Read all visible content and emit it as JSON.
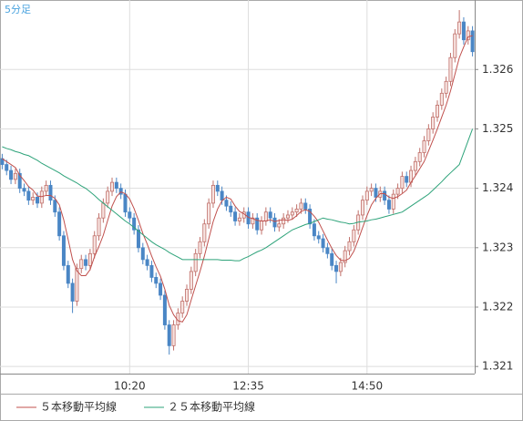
{
  "chart_data": {
    "type": "candlestick",
    "label": "5分足",
    "categories": [
      null,
      null,
      null,
      null,
      null,
      null,
      null,
      null,
      null,
      null,
      null,
      null,
      null,
      null,
      null,
      null,
      null,
      null,
      null,
      null,
      null,
      null,
      null,
      null,
      null,
      null,
      null,
      null,
      null,
      "10:20",
      null,
      null,
      null,
      null,
      null,
      null,
      null,
      null,
      null,
      null,
      null,
      null,
      null,
      null,
      null,
      null,
      null,
      null,
      null,
      null,
      null,
      null,
      null,
      null,
      null,
      null,
      "12:35",
      null,
      null,
      null,
      null,
      null,
      null,
      null,
      null,
      null,
      null,
      null,
      null,
      null,
      null,
      null,
      null,
      null,
      null,
      null,
      null,
      null,
      null,
      null,
      null,
      null,
      null,
      "14:50",
      null,
      null,
      null,
      null,
      null,
      null,
      null,
      null,
      null,
      null,
      null,
      null,
      null,
      null,
      null,
      null,
      null,
      null,
      null,
      null,
      null,
      null,
      null,
      null
    ],
    "open": [
      1.3245,
      1.3244,
      1.3243,
      1.32415,
      1.32425,
      1.324,
      1.32395,
      1.3238,
      1.32385,
      1.32375,
      1.32395,
      1.32405,
      1.3238,
      1.3236,
      1.3232,
      1.3227,
      1.3224,
      1.3221,
      1.32265,
      1.3228,
      1.3227,
      1.3229,
      1.3232,
      1.3235,
      1.32375,
      1.32395,
      1.3241,
      1.324,
      1.3239,
      1.3236,
      1.3235,
      1.3233,
      1.323,
      1.3228,
      1.3227,
      1.3225,
      1.3224,
      1.3222,
      1.3217,
      1.32135,
      1.3217,
      1.3219,
      1.3221,
      1.3223,
      1.3226,
      1.3229,
      1.3231,
      1.3234,
      1.32375,
      1.32405,
      1.32395,
      1.3238,
      1.3237,
      1.3236,
      1.32345,
      1.3235,
      1.3236,
      1.3234,
      1.3235,
      1.3233,
      1.32345,
      1.3236,
      1.3235,
      1.32335,
      1.3234,
      1.3235,
      1.32355,
      1.3236,
      1.32365,
      1.32375,
      1.32365,
      1.3234,
      1.3232,
      1.32315,
      1.323,
      1.3229,
      1.3227,
      1.3226,
      1.32275,
      1.32295,
      1.3231,
      1.3233,
      1.32355,
      1.3238,
      1.32395,
      1.324,
      1.32385,
      1.32395,
      1.3238,
      1.32365,
      1.3239,
      1.324,
      1.3242,
      1.3241,
      1.3243,
      1.32445,
      1.3246,
      1.3248,
      1.325,
      1.3252,
      1.3254,
      1.3256,
      1.3258,
      1.3262,
      1.3266,
      1.3268,
      1.3265,
      1.32665
    ],
    "high": [
      1.32458,
      1.32448,
      1.32438,
      1.32433,
      1.32433,
      1.32408,
      1.32403,
      1.32393,
      1.32393,
      1.32403,
      1.32413,
      1.32413,
      1.32388,
      1.32368,
      1.32328,
      1.32278,
      1.32248,
      1.32273,
      1.32288,
      1.32288,
      1.32298,
      1.32328,
      1.32358,
      1.32383,
      1.32403,
      1.32418,
      1.32418,
      1.32408,
      1.32398,
      1.32368,
      1.32358,
      1.32338,
      1.32308,
      1.32288,
      1.32278,
      1.32258,
      1.32248,
      1.32228,
      1.32178,
      1.32178,
      1.32198,
      1.32218,
      1.32238,
      1.32268,
      1.32298,
      1.32318,
      1.32348,
      1.32383,
      1.32413,
      1.32413,
      1.32403,
      1.32388,
      1.32378,
      1.32368,
      1.32358,
      1.32368,
      1.32368,
      1.32358,
      1.32358,
      1.32353,
      1.32368,
      1.32368,
      1.32358,
      1.32348,
      1.32358,
      1.32363,
      1.32368,
      1.32373,
      1.32383,
      1.32383,
      1.32373,
      1.32348,
      1.32328,
      1.32323,
      1.32308,
      1.32298,
      1.32278,
      1.32283,
      1.32303,
      1.32318,
      1.32338,
      1.32363,
      1.32388,
      1.32403,
      1.32408,
      1.32408,
      1.32403,
      1.32403,
      1.32388,
      1.32398,
      1.32408,
      1.32428,
      1.32428,
      1.32438,
      1.32453,
      1.32468,
      1.32488,
      1.32508,
      1.32528,
      1.32548,
      1.32568,
      1.32588,
      1.32628,
      1.32668,
      1.327,
      1.32688,
      1.32673,
      1.32673
    ],
    "low": [
      1.32432,
      1.32422,
      1.32407,
      1.32407,
      1.32392,
      1.32387,
      1.32372,
      1.32372,
      1.32367,
      1.32367,
      1.32387,
      1.32372,
      1.32352,
      1.32312,
      1.32262,
      1.32232,
      1.3219,
      1.32202,
      1.32257,
      1.32262,
      1.32262,
      1.32282,
      1.32312,
      1.32342,
      1.32367,
      1.32387,
      1.32392,
      1.32382,
      1.32352,
      1.32342,
      1.32322,
      1.32292,
      1.32272,
      1.32262,
      1.32242,
      1.32232,
      1.32212,
      1.32162,
      1.3212,
      1.32127,
      1.32162,
      1.32182,
      1.32202,
      1.32222,
      1.32252,
      1.32282,
      1.32302,
      1.32332,
      1.32367,
      1.32387,
      1.32372,
      1.32362,
      1.32352,
      1.32337,
      1.32337,
      1.32342,
      1.32332,
      1.32332,
      1.32322,
      1.32322,
      1.32337,
      1.32342,
      1.32327,
      1.32327,
      1.32332,
      1.32342,
      1.32347,
      1.32352,
      1.32357,
      1.32357,
      1.32332,
      1.32312,
      1.32307,
      1.32292,
      1.32282,
      1.32262,
      1.3224,
      1.32252,
      1.32267,
      1.32287,
      1.32302,
      1.32322,
      1.32347,
      1.32372,
      1.32387,
      1.32377,
      1.32377,
      1.32372,
      1.32357,
      1.32357,
      1.32382,
      1.32392,
      1.32402,
      1.32402,
      1.32422,
      1.32437,
      1.32452,
      1.32472,
      1.32492,
      1.32512,
      1.32532,
      1.32552,
      1.32572,
      1.32612,
      1.32652,
      1.32642,
      1.32642,
      1.32622
    ],
    "close": [
      1.3244,
      1.3243,
      1.32415,
      1.32425,
      1.324,
      1.32395,
      1.3238,
      1.32385,
      1.32375,
      1.32395,
      1.32405,
      1.3238,
      1.3236,
      1.3232,
      1.3227,
      1.3224,
      1.3221,
      1.32265,
      1.3228,
      1.3227,
      1.3229,
      1.3232,
      1.3235,
      1.32375,
      1.32395,
      1.3241,
      1.324,
      1.3239,
      1.3236,
      1.3235,
      1.3233,
      1.323,
      1.3228,
      1.3227,
      1.3225,
      1.3224,
      1.3222,
      1.3217,
      1.32135,
      1.3217,
      1.3219,
      1.3221,
      1.3223,
      1.3226,
      1.3229,
      1.3231,
      1.3234,
      1.32375,
      1.32405,
      1.32395,
      1.3238,
      1.3237,
      1.3236,
      1.32345,
      1.3235,
      1.3236,
      1.3234,
      1.3235,
      1.3233,
      1.32345,
      1.3236,
      1.3235,
      1.32335,
      1.3234,
      1.3235,
      1.32355,
      1.3236,
      1.32365,
      1.32375,
      1.32365,
      1.3234,
      1.3232,
      1.32315,
      1.323,
      1.3229,
      1.3227,
      1.3226,
      1.32275,
      1.32295,
      1.3231,
      1.3233,
      1.32355,
      1.3238,
      1.32395,
      1.324,
      1.32385,
      1.32395,
      1.3238,
      1.32365,
      1.3239,
      1.324,
      1.3242,
      1.3241,
      1.3243,
      1.32445,
      1.3246,
      1.3248,
      1.325,
      1.3252,
      1.3254,
      1.3256,
      1.3258,
      1.3262,
      1.3266,
      1.3268,
      1.3265,
      1.32665,
      1.3263
    ],
    "up_color": "#c0706a",
    "down_color": "#4a86c5",
    "series": [
      {
        "name": "５本移動平均線",
        "color": "#c0504d",
        "values": [
          1.3245,
          1.32445,
          1.3244,
          1.32435,
          1.32422,
          1.32413,
          1.32403,
          1.32397,
          1.32387,
          1.32386,
          1.32388,
          1.32388,
          1.32383,
          1.32372,
          1.32347,
          1.32314,
          1.3228,
          1.32261,
          1.32253,
          1.32253,
          1.32263,
          1.32285,
          1.32302,
          1.32321,
          1.32346,
          1.3237,
          1.32386,
          1.32394,
          1.32391,
          1.32382,
          1.32366,
          1.32346,
          1.32324,
          1.32306,
          1.32286,
          1.32268,
          1.32252,
          1.3223,
          1.32203,
          1.32187,
          1.32177,
          1.32175,
          1.32187,
          1.32212,
          1.32236,
          1.3226,
          1.32286,
          1.32315,
          1.32344,
          1.32365,
          1.32379,
          1.32385,
          1.32382,
          1.3237,
          1.32361,
          1.32357,
          1.32351,
          1.32349,
          1.32346,
          1.32345,
          1.32345,
          1.32347,
          1.32344,
          1.32346,
          1.32347,
          1.32346,
          1.32348,
          1.32354,
          1.32361,
          1.32364,
          1.32361,
          1.32353,
          1.32343,
          1.32328,
          1.32313,
          1.32299,
          1.32287,
          1.32279,
          1.32278,
          1.32282,
          1.32294,
          1.32313,
          1.32334,
          1.32354,
          1.32372,
          1.32383,
          1.32391,
          1.32391,
          1.32385,
          1.32383,
          1.32386,
          1.32391,
          1.32397,
          1.3241,
          1.32421,
          1.32433,
          1.32445,
          1.32463,
          1.32481,
          1.325,
          1.3252,
          1.3254,
          1.32564,
          1.32592,
          1.3262,
          1.32638,
          1.32655,
          1.32657
        ]
      },
      {
        "name": "２５本移動平均線",
        "color": "#2ea37a",
        "values": [
          1.3247,
          1.32467,
          1.32465,
          1.32462,
          1.3246,
          1.32457,
          1.32455,
          1.32451,
          1.32447,
          1.32442,
          1.32438,
          1.32434,
          1.3243,
          1.32426,
          1.32421,
          1.32417,
          1.32413,
          1.32409,
          1.32404,
          1.324,
          1.32394,
          1.32388,
          1.32381,
          1.32375,
          1.32369,
          1.32363,
          1.32357,
          1.32351,
          1.32345,
          1.3234,
          1.32334,
          1.32328,
          1.32322,
          1.32316,
          1.3231,
          1.32305,
          1.32301,
          1.32297,
          1.32292,
          1.32288,
          1.32284,
          1.3228,
          1.3228,
          1.3228,
          1.3228,
          1.3228,
          1.3228,
          1.3228,
          1.3228,
          1.3228,
          1.32279,
          1.32279,
          1.32279,
          1.32278,
          1.32278,
          1.32282,
          1.32285,
          1.32289,
          1.32293,
          1.32296,
          1.323,
          1.32305,
          1.3231,
          1.32315,
          1.3232,
          1.32325,
          1.3233,
          1.32333,
          1.32336,
          1.32339,
          1.32341,
          1.32344,
          1.32347,
          1.3235,
          1.32348,
          1.32347,
          1.32345,
          1.32343,
          1.32342,
          1.3234,
          1.32341,
          1.32343,
          1.32344,
          1.32345,
          1.32347,
          1.32348,
          1.3235,
          1.32352,
          1.32354,
          1.32356,
          1.32358,
          1.3236,
          1.32365,
          1.3237,
          1.32375,
          1.3238,
          1.32385,
          1.3239,
          1.32397,
          1.32404,
          1.32411,
          1.32419,
          1.32426,
          1.32433,
          1.3244,
          1.3246,
          1.3248,
          1.325
        ]
      }
    ],
    "ylim": [
      1.32088,
      1.32717
    ],
    "yticks": [
      1.321,
      1.322,
      1.323,
      1.324,
      1.325,
      1.326
    ],
    "grid": true
  }
}
